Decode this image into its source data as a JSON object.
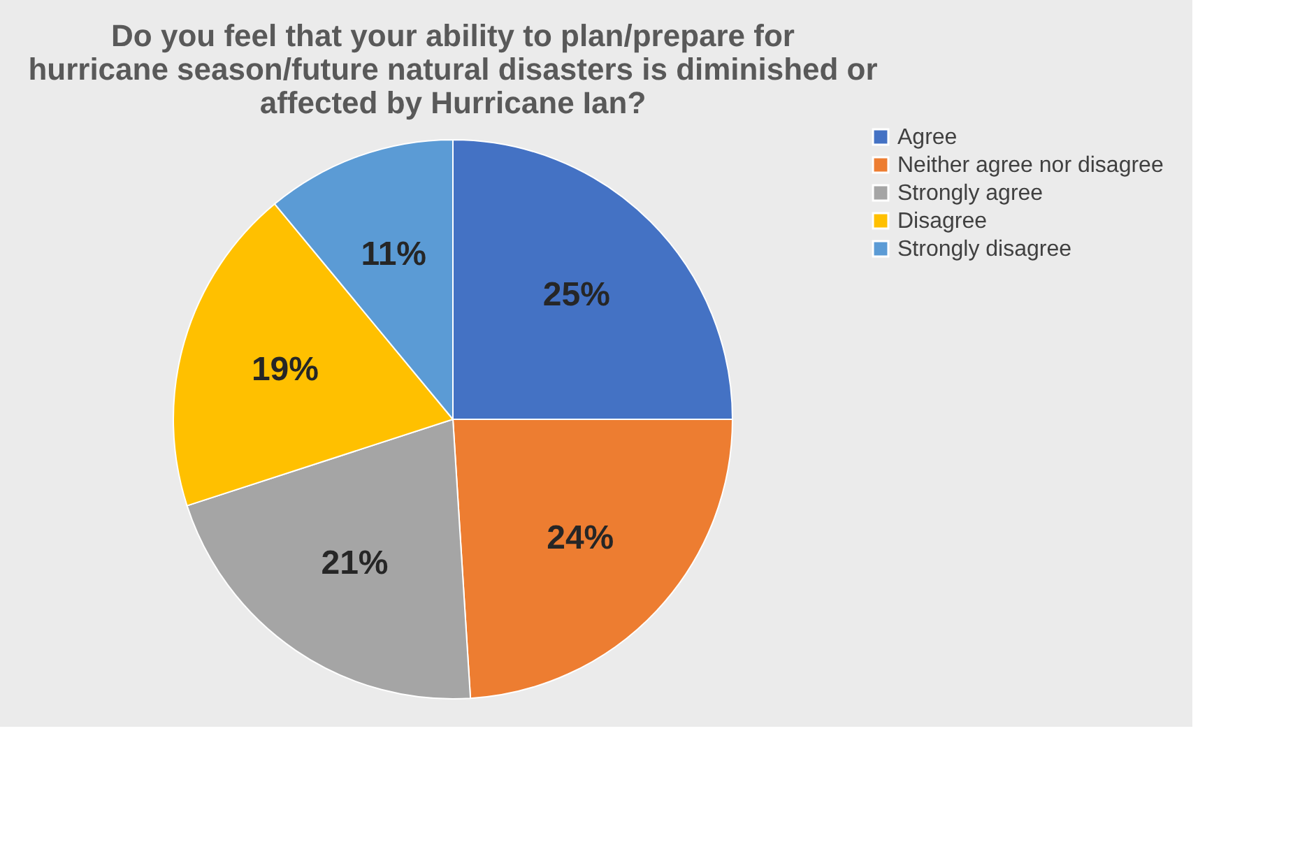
{
  "chart_data": {
    "type": "pie",
    "title": "Do you feel that your ability to plan/prepare for hurricane season/future natural disasters is diminished or affected by Hurricane Ian?",
    "categories": [
      "Agree",
      "Neither agree nor disagree",
      "Strongly agree",
      "Disagree",
      "Strongly disagree"
    ],
    "values": [
      25,
      24,
      21,
      19,
      11
    ],
    "colors": [
      "#4472c4",
      "#ed7d31",
      "#a5a5a5",
      "#ffc000",
      "#5b9bd5"
    ],
    "value_labels": [
      "25%",
      "24%",
      "21%",
      "19%",
      "11%"
    ],
    "legend": "right"
  }
}
